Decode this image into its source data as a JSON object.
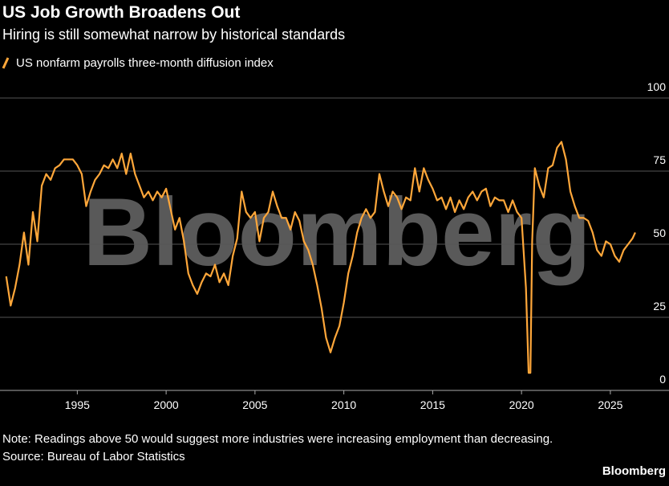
{
  "chart_data": {
    "type": "line",
    "title": "US Job Growth Broadens Out",
    "subtitle": "Hiring is still somewhat narrow by historical standards",
    "watermark": "Bloomberg",
    "note": "Note: Readings above 50 would suggest more industries were increasing employment than decreasing.",
    "source": "Source: Bureau of Labor Statistics",
    "brand": "Bloomberg",
    "grid": true,
    "xlim": [
      1990.65,
      2028.3
    ],
    "ylim": [
      0,
      100
    ],
    "xticks": [
      1995,
      2000,
      2005,
      2010,
      2015,
      2020,
      2025
    ],
    "yticks": [
      0,
      25,
      50,
      75,
      100
    ],
    "x": [
      1991.0,
      1991.25,
      1991.5,
      1991.75,
      1992.0,
      1992.25,
      1992.5,
      1992.75,
      1993.0,
      1993.25,
      1993.5,
      1993.75,
      1994.0,
      1994.25,
      1994.5,
      1994.75,
      1995.0,
      1995.25,
      1995.5,
      1995.75,
      1996.0,
      1996.25,
      1996.5,
      1996.75,
      1997.0,
      1997.25,
      1997.5,
      1997.75,
      1998.0,
      1998.25,
      1998.5,
      1998.75,
      1999.0,
      1999.25,
      1999.5,
      1999.75,
      2000.0,
      2000.25,
      2000.5,
      2000.75,
      2001.0,
      2001.25,
      2001.5,
      2001.75,
      2002.0,
      2002.25,
      2002.5,
      2002.75,
      2003.0,
      2003.25,
      2003.5,
      2003.75,
      2004.0,
      2004.25,
      2004.5,
      2004.75,
      2005.0,
      2005.25,
      2005.5,
      2005.75,
      2006.0,
      2006.25,
      2006.5,
      2006.75,
      2007.0,
      2007.25,
      2007.5,
      2007.75,
      2008.0,
      2008.25,
      2008.5,
      2008.75,
      2009.0,
      2009.25,
      2009.5,
      2009.75,
      2010.0,
      2010.25,
      2010.5,
      2010.75,
      2011.0,
      2011.25,
      2011.5,
      2011.75,
      2012.0,
      2012.25,
      2012.5,
      2012.75,
      2013.0,
      2013.25,
      2013.5,
      2013.75,
      2014.0,
      2014.25,
      2014.5,
      2014.75,
      2015.0,
      2015.25,
      2015.5,
      2015.75,
      2016.0,
      2016.25,
      2016.5,
      2016.75,
      2017.0,
      2017.25,
      2017.5,
      2017.75,
      2018.0,
      2018.25,
      2018.5,
      2018.75,
      2019.0,
      2019.25,
      2019.5,
      2019.75,
      2020.0,
      2020.25,
      2020.4,
      2020.5,
      2020.6,
      2020.75,
      2021.0,
      2021.25,
      2021.5,
      2021.75,
      2022.0,
      2022.25,
      2022.5,
      2022.75,
      2023.0,
      2023.25,
      2023.5,
      2023.75,
      2024.0,
      2024.25,
      2024.5,
      2024.75,
      2025.0,
      2025.25,
      2025.5,
      2025.75,
      2026.0,
      2026.25,
      2026.4
    ],
    "series": [
      {
        "name": "US nonfarm payrolls three-month diffusion index",
        "color": "#ffa73a",
        "values": [
          39,
          29,
          35,
          43,
          54,
          43,
          61,
          51,
          70,
          74,
          72,
          76,
          77,
          79,
          79,
          79,
          77,
          74,
          63,
          68,
          72,
          74,
          77,
          76,
          79,
          76,
          81,
          74,
          81,
          74,
          70,
          66,
          68,
          65,
          68,
          66,
          69,
          62,
          55,
          59,
          51,
          40,
          36,
          33,
          37,
          40,
          39,
          43,
          37,
          40,
          36,
          46,
          52,
          68,
          61,
          59,
          61,
          51,
          59,
          61,
          68,
          63,
          59,
          59,
          55,
          61,
          58,
          51,
          48,
          43,
          36,
          28,
          18,
          13,
          18,
          22,
          30,
          40,
          46,
          54,
          59,
          62,
          59,
          61,
          74,
          68,
          63,
          68,
          66,
          62,
          66,
          65,
          76,
          68,
          76,
          72,
          69,
          65,
          66,
          62,
          66,
          61,
          65,
          62,
          66,
          68,
          65,
          68,
          69,
          63,
          66,
          65,
          65,
          61,
          65,
          61,
          59,
          35,
          6,
          6,
          51,
          76,
          70,
          66,
          76,
          77,
          83,
          85,
          79,
          68,
          63,
          59,
          59,
          58,
          54,
          48,
          46,
          51,
          50,
          46,
          44,
          48,
          50,
          52,
          54
        ]
      }
    ]
  }
}
